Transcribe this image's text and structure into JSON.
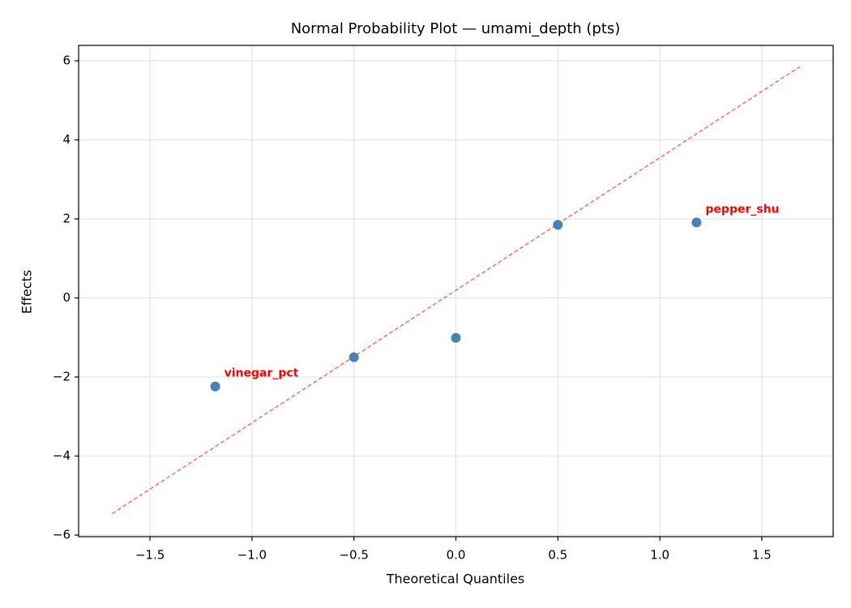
{
  "chart_data": {
    "type": "scatter",
    "title": "Normal Probability Plot — umami_depth (pts)",
    "x_label": "Theoretical Quantiles",
    "y_label": "Effects",
    "x": [
      -1.18,
      -0.5,
      0,
      0.5,
      1.18
    ],
    "y": [
      -2.24,
      -1.5,
      -1.01,
      1.85,
      1.91
    ],
    "color": "#4682b4",
    "point_labels": [
      "vinegar_pct",
      null,
      null,
      null,
      "pepper_shu"
    ],
    "point_label_color": "#ff0000",
    "reference_line": {
      "x": [
        -1.686,
        1.686
      ],
      "y": [
        -5.46,
        5.85
      ],
      "color": "#ff6b60"
    },
    "xlim": [
      -1.85,
      1.85
    ],
    "ylim": [
      -6.04,
      6.39
    ],
    "xticks": [
      {
        "value": -1.5,
        "label": "−1.5"
      },
      {
        "value": -1.0,
        "label": "−1.0"
      },
      {
        "value": -0.5,
        "label": "−0.5"
      },
      {
        "value": 0,
        "label": "0.0"
      },
      {
        "value": 0.5,
        "label": "0.5"
      },
      {
        "value": 1,
        "label": "1.0"
      },
      {
        "value": 1.5,
        "label": "1.5"
      }
    ],
    "yticks": [
      {
        "value": -6,
        "label": "−6"
      },
      {
        "value": -4,
        "label": "−4"
      },
      {
        "value": -2,
        "label": "−2"
      },
      0,
      2,
      4,
      6
    ],
    "grid": true
  }
}
